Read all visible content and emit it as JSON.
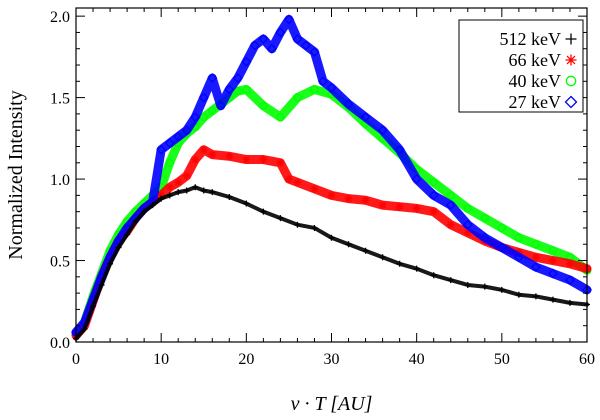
{
  "chart_data": {
    "type": "scatter",
    "title": "",
    "xlabel": "v · T [AU]",
    "ylabel": "Normalized Intensity",
    "xlim": [
      0,
      60
    ],
    "ylim": [
      0,
      2.05
    ],
    "xticks": [
      0,
      10,
      20,
      30,
      40,
      50,
      60
    ],
    "xtick_labels": [
      "0",
      "10",
      "20",
      "30",
      "40",
      "50",
      "60"
    ],
    "yticks": [
      0.0,
      0.5,
      1.0,
      1.5,
      2.0
    ],
    "ytick_labels": [
      "0.0",
      "0.5",
      "1.0",
      "1.5",
      "2.0"
    ],
    "legend_position": "top-right",
    "series": [
      {
        "name": "512 keV",
        "marker": "+",
        "color": "#000000",
        "x": [
          0,
          1,
          2,
          3,
          4,
          5,
          6,
          7,
          8,
          9,
          10,
          11,
          12,
          13,
          14,
          15,
          16,
          18,
          20,
          22,
          24,
          26,
          28,
          30,
          32,
          34,
          36,
          38,
          40,
          42,
          44,
          46,
          48,
          50,
          52,
          54,
          56,
          58,
          60
        ],
        "y": [
          0.02,
          0.08,
          0.22,
          0.35,
          0.48,
          0.58,
          0.66,
          0.74,
          0.8,
          0.84,
          0.88,
          0.9,
          0.92,
          0.93,
          0.95,
          0.93,
          0.92,
          0.89,
          0.85,
          0.8,
          0.76,
          0.72,
          0.7,
          0.64,
          0.6,
          0.56,
          0.52,
          0.48,
          0.45,
          0.41,
          0.38,
          0.35,
          0.34,
          0.32,
          0.29,
          0.28,
          0.26,
          0.24,
          0.23
        ]
      },
      {
        "name": "66 keV",
        "marker": "asterisk",
        "color": "#ff0000",
        "x": [
          0,
          1,
          2,
          3,
          4,
          5,
          6,
          7,
          8,
          9,
          10,
          11,
          12,
          13,
          14,
          15,
          16,
          18,
          20,
          22,
          24,
          25,
          26,
          28,
          30,
          32,
          34,
          36,
          38,
          40,
          42,
          44,
          46,
          48,
          50,
          52,
          54,
          56,
          58,
          60
        ],
        "y": [
          0.04,
          0.1,
          0.25,
          0.4,
          0.52,
          0.62,
          0.68,
          0.76,
          0.82,
          0.86,
          0.9,
          0.95,
          0.98,
          1.02,
          1.12,
          1.18,
          1.15,
          1.14,
          1.12,
          1.12,
          1.1,
          1.0,
          0.98,
          0.94,
          0.9,
          0.88,
          0.87,
          0.84,
          0.83,
          0.82,
          0.8,
          0.72,
          0.67,
          0.62,
          0.58,
          0.55,
          0.52,
          0.5,
          0.48,
          0.45
        ]
      },
      {
        "name": "40 keV",
        "marker": "circle",
        "color": "#00ff00",
        "x": [
          0,
          1,
          2,
          3,
          4,
          5,
          6,
          7,
          8,
          9,
          10,
          11,
          12,
          13,
          14,
          15,
          16,
          17,
          18,
          19,
          20,
          22,
          24,
          26,
          28,
          30,
          32,
          34,
          36,
          38,
          40,
          42,
          44,
          46,
          48,
          50,
          52,
          54,
          56,
          58,
          60
        ],
        "y": [
          0.05,
          0.12,
          0.28,
          0.42,
          0.56,
          0.66,
          0.74,
          0.8,
          0.85,
          0.9,
          0.95,
          1.1,
          1.22,
          1.28,
          1.32,
          1.38,
          1.42,
          1.46,
          1.5,
          1.54,
          1.55,
          1.45,
          1.38,
          1.5,
          1.55,
          1.52,
          1.44,
          1.34,
          1.25,
          1.16,
          1.06,
          0.98,
          0.9,
          0.82,
          0.76,
          0.7,
          0.64,
          0.6,
          0.56,
          0.52,
          0.44
        ]
      },
      {
        "name": "27 keV",
        "marker": "diamond",
        "color": "#0000ff",
        "x": [
          0,
          1,
          2,
          3,
          4,
          5,
          6,
          7,
          8,
          9,
          10,
          11,
          12,
          13,
          14,
          15,
          16,
          17,
          18,
          19,
          20,
          21,
          22,
          23,
          24,
          25,
          26,
          27,
          28,
          29,
          30,
          32,
          34,
          36,
          38,
          40,
          42,
          44,
          46,
          48,
          50,
          52,
          54,
          56,
          58,
          60
        ],
        "y": [
          0.06,
          0.12,
          0.26,
          0.4,
          0.52,
          0.62,
          0.7,
          0.76,
          0.82,
          0.86,
          1.18,
          1.22,
          1.26,
          1.3,
          1.38,
          1.5,
          1.62,
          1.45,
          1.55,
          1.62,
          1.72,
          1.82,
          1.86,
          1.8,
          1.9,
          1.98,
          1.86,
          1.82,
          1.78,
          1.6,
          1.56,
          1.46,
          1.38,
          1.3,
          1.18,
          1.0,
          0.9,
          0.84,
          0.72,
          0.64,
          0.58,
          0.52,
          0.46,
          0.42,
          0.38,
          0.32
        ]
      }
    ]
  }
}
